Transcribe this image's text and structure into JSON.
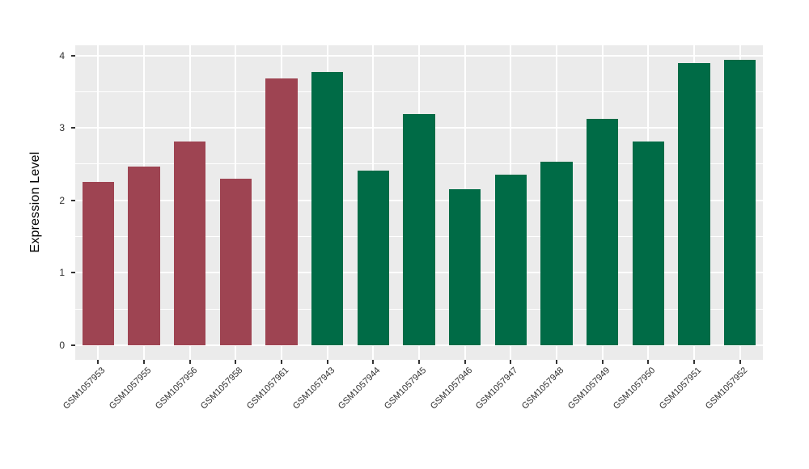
{
  "chart_data": {
    "type": "bar",
    "title": "",
    "xlabel": "",
    "ylabel": "Expression Level",
    "categories": [
      "GSM1057953",
      "GSM1057955",
      "GSM1057956",
      "GSM1057958",
      "GSM1057961",
      "GSM1057943",
      "GSM1057944",
      "GSM1057945",
      "GSM1057946",
      "GSM1057947",
      "GSM1057948",
      "GSM1057949",
      "GSM1057950",
      "GSM1057951",
      "GSM1057952"
    ],
    "values": [
      2.25,
      2.47,
      2.81,
      2.3,
      3.68,
      3.77,
      2.41,
      3.19,
      2.15,
      2.35,
      2.53,
      3.12,
      2.81,
      3.9,
      3.94
    ],
    "bar_colors": [
      "#9E4452",
      "#9E4452",
      "#9E4452",
      "#9E4452",
      "#9E4452",
      "#006B46",
      "#006B46",
      "#006B46",
      "#006B46",
      "#006B46",
      "#006B46",
      "#006B46",
      "#006B46",
      "#006B46",
      "#006B46"
    ],
    "group_colors": {
      "maroon_group": "#9E4452",
      "green_group": "#006B46"
    },
    "yticks": [
      "0",
      "1",
      "2",
      "3",
      "4"
    ],
    "ytick_values": [
      0,
      1,
      2,
      3,
      4
    ],
    "minor_tick_values": [
      0.5,
      1.5,
      2.5,
      3.5
    ],
    "ylim": [
      -0.2,
      4.14
    ],
    "bar_width_fraction": 0.7,
    "grid": "on",
    "legend": "none",
    "panel_bg": "#EBEBEB",
    "grid_color": "#FFFFFF",
    "tick_color": "#333333",
    "axis_text_color": "#303030"
  }
}
